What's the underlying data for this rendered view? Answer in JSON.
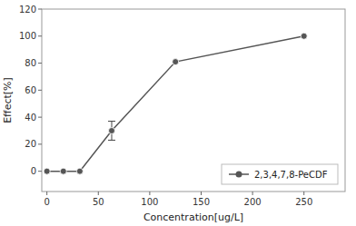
{
  "chart_data": {
    "type": "line",
    "x": [
      0,
      16,
      32,
      63,
      125,
      250
    ],
    "series": [
      {
        "name": "2,3,4,7,8-PeCDF",
        "color": "#555555",
        "marker": "circle",
        "line_style": "solid",
        "values": [
          0,
          0,
          0,
          30,
          81,
          100
        ],
        "yerr": [
          0,
          0,
          0,
          7,
          0,
          0
        ]
      }
    ],
    "x_label": "Concentration[ug/L]",
    "y_label": "Effect[%]",
    "xlim": [
      -5,
      290
    ],
    "ylim": [
      -15,
      120
    ],
    "xticks": [
      0,
      50,
      100,
      150,
      200,
      250
    ],
    "yticks": [
      0,
      20,
      40,
      60,
      80,
      100,
      120
    ],
    "grid": false,
    "legend": "lower right"
  }
}
